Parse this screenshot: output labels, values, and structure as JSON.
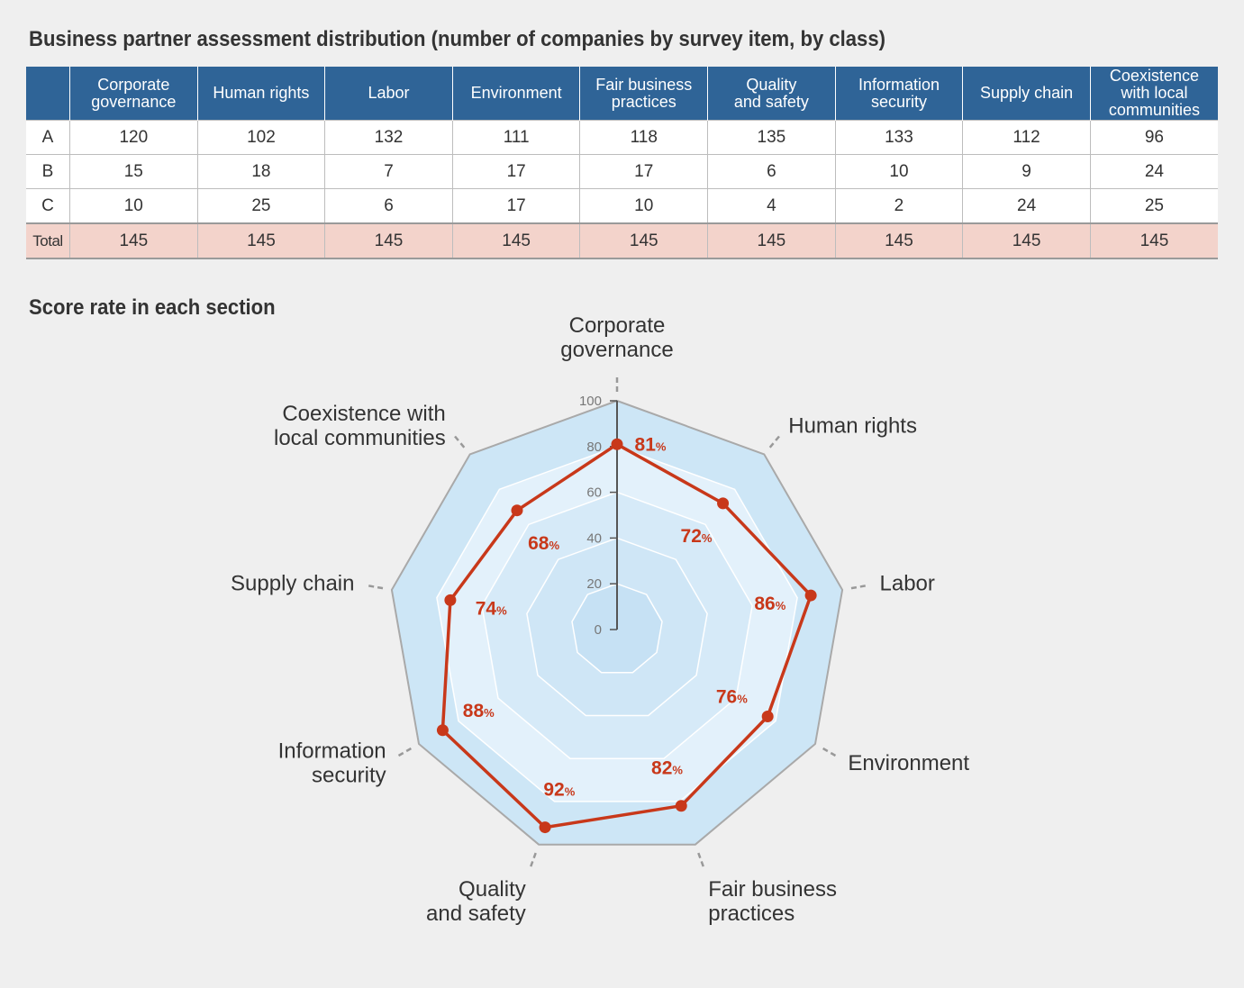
{
  "table": {
    "title": "Business partner assessment distribution (number of companies by survey item, by class)",
    "columns": [
      "Corporate\ngovernance",
      "Human rights",
      "Labor",
      "Environment",
      "Fair business\npractices",
      "Quality\nand safety",
      "Information\nsecurity",
      "Supply chain",
      "Coexistence\nwith local\ncommunities"
    ],
    "rows": [
      {
        "label": "A",
        "values": [
          120,
          102,
          132,
          111,
          118,
          135,
          133,
          112,
          96
        ]
      },
      {
        "label": "B",
        "values": [
          15,
          18,
          7,
          17,
          17,
          6,
          10,
          9,
          24
        ]
      },
      {
        "label": "C",
        "values": [
          10,
          25,
          6,
          17,
          10,
          4,
          2,
          24,
          25
        ]
      }
    ],
    "total": {
      "label": "Total",
      "values": [
        145,
        145,
        145,
        145,
        145,
        145,
        145,
        145,
        145
      ]
    }
  },
  "chart_data": {
    "type": "radar",
    "title": "Score rate in each section",
    "categories": [
      "Corporate\ngovernance",
      "Human rights",
      "Labor",
      "Environment",
      "Fair business\npractices",
      "Quality\nand safety",
      "Information\nsecurity",
      "Supply chain",
      "Coexistence with\nlocal communities"
    ],
    "values": [
      81,
      72,
      86,
      76,
      82,
      92,
      88,
      74,
      68
    ],
    "value_suffix": "%",
    "rlim": [
      0,
      100
    ],
    "ticks": [
      0,
      20,
      40,
      60,
      80,
      100
    ],
    "grid": true,
    "colors": {
      "series": "#c8381a",
      "outer_fill": "#cde6f6",
      "ring_fill": "#e3f1fb",
      "grid_line": "#ffffff",
      "outline": "#a9a9a9"
    }
  }
}
